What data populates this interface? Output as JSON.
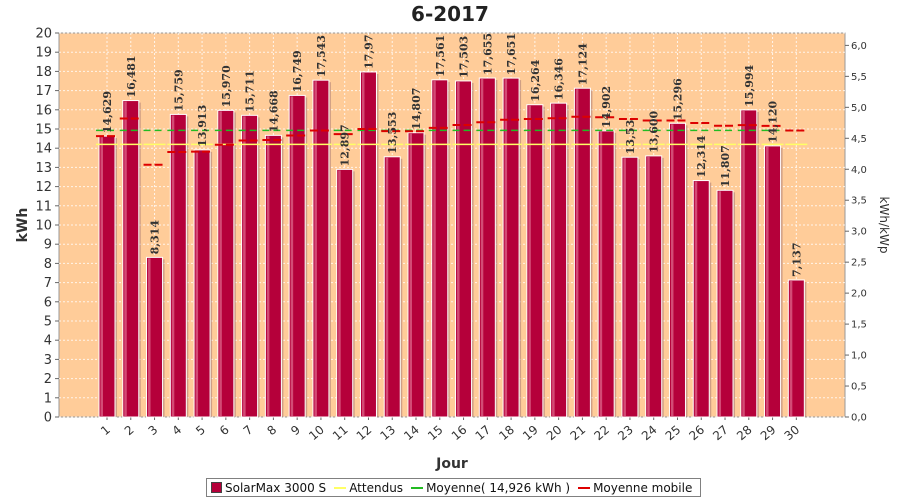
{
  "chart_data": {
    "type": "bar",
    "title": "6-2017",
    "xlabel": "Jour",
    "ylabel": "kWh",
    "y2label": "kWh/kWp",
    "ylim": [
      0,
      20
    ],
    "y2lim": [
      0,
      6.2
    ],
    "yticks": [
      "0",
      "1",
      "2",
      "3",
      "4",
      "5",
      "6",
      "7",
      "8",
      "9",
      "10",
      "11",
      "12",
      "13",
      "14",
      "15",
      "16",
      "17",
      "18",
      "19",
      "20"
    ],
    "y2ticks": [
      "0,0",
      "0,5",
      "1,0",
      "1,5",
      "2,0",
      "2,5",
      "3,0",
      "3,5",
      "4,0",
      "4,5",
      "5,0",
      "5,5",
      "6,0"
    ],
    "categories": [
      "1",
      "2",
      "3",
      "4",
      "5",
      "6",
      "7",
      "8",
      "9",
      "10",
      "11",
      "12",
      "13",
      "14",
      "15",
      "16",
      "17",
      "18",
      "19",
      "20",
      "21",
      "22",
      "23",
      "24",
      "25",
      "26",
      "27",
      "28",
      "29",
      "30"
    ],
    "series": [
      {
        "name": "SolarMax 3000 S",
        "type": "bar",
        "color": "#b5003a",
        "values": [
          14.629,
          16.481,
          8.314,
          15.759,
          13.913,
          15.97,
          15.711,
          14.668,
          16.749,
          17.543,
          12.897,
          17.97,
          13.553,
          14.807,
          17.561,
          17.503,
          17.655,
          17.651,
          16.264,
          16.346,
          17.124,
          14.902,
          13.53,
          13.6,
          15.296,
          12.314,
          11.807,
          15.994,
          14.12,
          7.137
        ],
        "labels": [
          "14,629",
          "16,481",
          "8,314",
          "15,759",
          "13,913",
          "15,970",
          "15,711",
          "14,668",
          "16,749",
          "17,543",
          "12,897",
          "17,97",
          "13,553",
          "14,807",
          "17,561",
          "17,503",
          "17,655",
          "17,651",
          "16,264",
          "16,346",
          "17,124",
          "14,902",
          "13,53",
          "13,600",
          "15,296",
          "12,314",
          "11,807",
          "15,994",
          "14,120",
          "7,137"
        ]
      },
      {
        "name": "Attendus",
        "type": "line",
        "color": "#ffff66",
        "values": [
          14.2,
          14.2,
          14.2,
          14.2,
          14.2,
          14.2,
          14.2,
          14.2,
          14.2,
          14.2,
          14.2,
          14.2,
          14.2,
          14.2,
          14.2,
          14.2,
          14.2,
          14.2,
          14.2,
          14.2,
          14.2,
          14.2,
          14.2,
          14.2,
          14.2,
          14.2,
          14.2,
          14.2,
          14.2,
          14.2
        ]
      },
      {
        "name": "Moyenne( 14,926 kWh )",
        "type": "line",
        "color": "#22bb22",
        "values": [
          14.926,
          14.926,
          14.926,
          14.926,
          14.926,
          14.926,
          14.926,
          14.926,
          14.926,
          14.926,
          14.926,
          14.926,
          14.926,
          14.926,
          14.926,
          14.926,
          14.926,
          14.926,
          14.926,
          14.926,
          14.926,
          14.926,
          14.926,
          14.926,
          14.926,
          14.926,
          14.926,
          14.926,
          14.926,
          14.926
        ]
      },
      {
        "name": "Moyenne mobile",
        "type": "line",
        "color": "#dd0000",
        "values": [
          14.63,
          15.55,
          13.14,
          13.8,
          13.82,
          14.18,
          14.4,
          14.43,
          14.66,
          14.92,
          14.73,
          15.0,
          14.89,
          14.88,
          15.06,
          15.21,
          15.35,
          15.48,
          15.52,
          15.56,
          15.64,
          15.61,
          15.52,
          15.44,
          15.44,
          15.31,
          15.17,
          15.2,
          15.16,
          14.92
        ]
      }
    ],
    "grid": true,
    "legend_position": "bottom"
  },
  "legend": {
    "items": [
      {
        "label": "SolarMax 3000 S",
        "kind": "box",
        "color": "#b5003a"
      },
      {
        "label": "Attendus",
        "kind": "line",
        "color": "#ffff66"
      },
      {
        "label": "Moyenne( 14,926 kWh )",
        "kind": "line",
        "color": "#22bb22"
      },
      {
        "label": "Moyenne mobile",
        "kind": "line",
        "color": "#dd0000"
      }
    ]
  }
}
